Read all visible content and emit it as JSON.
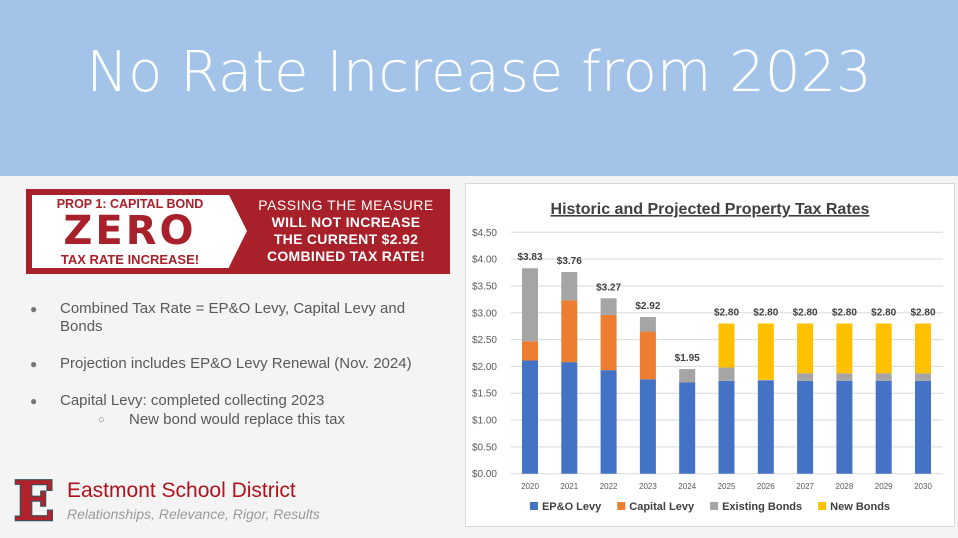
{
  "slide": {
    "title": "No Rate Increase from 2023",
    "colors": {
      "header_bg": "#a3c4e8",
      "brand_red": "#a8202a"
    }
  },
  "banner": {
    "prop": "PROP 1: CAPITAL BOND",
    "zero": "ZERO",
    "tax_rate_increase": "TAX RATE INCREASE!",
    "line1": "PASSING THE MEASURE",
    "line2": "WILL NOT INCREASE",
    "line3": "THE CURRENT $2.92",
    "line4": "COMBINED TAX RATE!"
  },
  "bullets": [
    {
      "text": "Combined Tax Rate = EP&O Levy, Capital Levy and Bonds"
    },
    {
      "text": "Projection includes EP&O Levy Renewal (Nov. 2024)"
    },
    {
      "text": "Capital Levy: completed collecting 2023",
      "sub": "New bond would replace this tax"
    }
  ],
  "footer": {
    "logo_letter": "E",
    "org_name": "Eastmont School District",
    "tagline": "Relationships, Relevance, Rigor, Results"
  },
  "chart_data": {
    "type": "bar",
    "stacked": true,
    "title": "Historic and Projected Property Tax Rates",
    "categories": [
      "2020",
      "2021",
      "2022",
      "2023",
      "2024",
      "2025",
      "2026",
      "2027",
      "2028",
      "2029",
      "2030"
    ],
    "series": [
      {
        "name": "EP&O Levy",
        "color": "#4472c4",
        "values": [
          2.11,
          2.08,
          1.93,
          1.76,
          1.7,
          1.73,
          1.74,
          1.73,
          1.73,
          1.73,
          1.73
        ]
      },
      {
        "name": "Capital Levy",
        "color": "#ed7d31",
        "values": [
          0.36,
          1.15,
          1.03,
          0.89,
          0,
          0,
          0,
          0,
          0,
          0,
          0
        ]
      },
      {
        "name": "Existing Bonds",
        "color": "#a5a5a5",
        "values": [
          1.36,
          0.53,
          0.31,
          0.27,
          0.25,
          0.25,
          0.01,
          0.14,
          0.14,
          0.14,
          0.14
        ]
      },
      {
        "name": "New Bonds",
        "color": "#ffc000",
        "values": [
          0,
          0,
          0,
          0,
          0,
          0.82,
          1.05,
          0.93,
          0.93,
          0.93,
          0.93
        ]
      }
    ],
    "totals_labels": [
      "$3.83",
      "$3.76",
      "$3.27",
      "$2.92",
      "$1.95",
      "$2.80",
      "$2.80",
      "$2.80",
      "$2.80",
      "$2.80",
      "$2.80"
    ],
    "y_ticks": [
      "$0.00",
      "$0.50",
      "$1.00",
      "$1.50",
      "$2.00",
      "$2.50",
      "$3.00",
      "$3.50",
      "$4.00",
      "$4.50"
    ],
    "ylim": [
      0,
      4.5
    ],
    "grid": true,
    "legend": "bottom"
  }
}
